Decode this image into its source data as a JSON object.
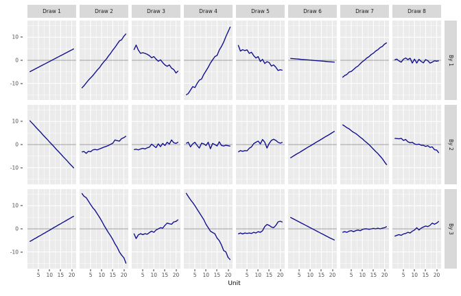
{
  "figure": {
    "x_label": "Unit"
  },
  "facets": {
    "col_labels": [
      "Draw 1",
      "Draw 2",
      "Draw 3",
      "Draw 4",
      "Draw 5",
      "Draw 6",
      "Draw 7",
      "Draw 8"
    ],
    "row_labels": [
      "By 1",
      "By 2",
      "By 3"
    ]
  },
  "axis": {
    "x_ticks": [
      5,
      10,
      15,
      20
    ],
    "y_ticks": [
      10,
      0,
      -10
    ],
    "x_minor": [
      2.5,
      7.5,
      12.5,
      17.5
    ],
    "y_minor": [
      15,
      5,
      -5,
      -15
    ],
    "x_domain": [
      0,
      22
    ],
    "y_domain": [
      -17.2,
      17.2
    ]
  },
  "style": {
    "line_color": "#10108e",
    "panel_bg": "#ebebeb",
    "strip_bg": "#d9d9d9",
    "grid_color": "#ffffff",
    "zero_line_color": "#a0a0a0",
    "tick_label_color": "#4d4d4d",
    "strip_text_color": "#1a1a1a",
    "axis_title_color": "#000000"
  },
  "chart_data": {
    "type": "line",
    "title": "",
    "xlabel": "Unit",
    "ylabel": "",
    "grid": true,
    "legend": "none",
    "facet_cols": [
      "Draw 1",
      "Draw 2",
      "Draw 3",
      "Draw 4",
      "Draw 5",
      "Draw 6",
      "Draw 7",
      "Draw 8"
    ],
    "facet_rows": [
      "By 1",
      "By 2",
      "By 3"
    ],
    "xlim": [
      0,
      22
    ],
    "ylim": [
      -17.2,
      17.2
    ],
    "x": [
      1,
      2,
      3,
      4,
      5,
      6,
      7,
      8,
      9,
      10,
      11,
      12,
      13,
      14,
      15,
      16,
      17,
      18,
      19,
      20,
      21
    ],
    "series": [
      {
        "row": "By 1",
        "col": "Draw 1",
        "values": [
          -5,
          -4.5,
          -4,
          -3.5,
          -3,
          -2.5,
          -2,
          -1.5,
          -1,
          -0.5,
          0,
          0.5,
          1,
          1.5,
          2,
          2.5,
          3,
          3.5,
          4,
          4.5,
          5
        ]
      },
      {
        "row": "By 1",
        "col": "Draw 2",
        "values": [
          -12,
          -11,
          -9.8,
          -8.6,
          -7.6,
          -6.6,
          -5.4,
          -4.2,
          -3.2,
          -1.8,
          -0.6,
          0.4,
          1.8,
          3,
          4.4,
          5.6,
          7,
          8.4,
          8.9,
          10.4,
          11.5
        ]
      },
      {
        "row": "By 1",
        "col": "Draw 3",
        "values": [
          4.5,
          6.6,
          4.4,
          3,
          3.3,
          3,
          2.6,
          2,
          1.1,
          1.6,
          0.5,
          -0.4,
          0.2,
          -1,
          -2,
          -2.6,
          -2,
          -3.4,
          -4,
          -5.5,
          -4.6
        ]
      },
      {
        "row": "By 1",
        "col": "Draw 4",
        "values": [
          -15,
          -14.4,
          -12.9,
          -11.4,
          -11.8,
          -10,
          -8.6,
          -8.1,
          -6.1,
          -4.6,
          -3,
          -1.2,
          0.2,
          1.6,
          2.1,
          4.4,
          6,
          7.9,
          10.3,
          12.4,
          14.5
        ]
      },
      {
        "row": "By 1",
        "col": "Draw 5",
        "values": [
          6.6,
          4,
          4.6,
          4.2,
          4.5,
          3,
          3.5,
          2,
          1,
          1.6,
          -0.5,
          0.4,
          -1.4,
          -0.6,
          -1,
          -2.5,
          -2,
          -3,
          -4.4,
          -4.1,
          -4.3
        ]
      },
      {
        "row": "By 1",
        "col": "Draw 6",
        "values": [
          0.8,
          0.72,
          0.64,
          0.56,
          0.48,
          0.4,
          0.32,
          0.24,
          0.16,
          0.08,
          0,
          -0.08,
          -0.16,
          -0.24,
          -0.32,
          -0.4,
          -0.48,
          -0.56,
          -0.64,
          -0.72,
          -0.8
        ]
      },
      {
        "row": "By 1",
        "col": "Draw 7",
        "values": [
          -7.4,
          -6.6,
          -6.1,
          -5.1,
          -4.8,
          -4,
          -3.1,
          -2.5,
          -1.5,
          -0.6,
          0.1,
          1,
          1.6,
          2.5,
          3.1,
          4,
          4.6,
          5.5,
          6,
          7,
          7.6
        ]
      },
      {
        "row": "By 1",
        "col": "Draw 8",
        "values": [
          0.2,
          0.5,
          -0.3,
          -0.8,
          0.5,
          1,
          0.3,
          0.9,
          -1.2,
          0.5,
          -1.2,
          0.4,
          -0.5,
          -1.1,
          0.3,
          -0.2,
          -1.2,
          -0.8,
          -0.2,
          -0.4,
          -0.2
        ]
      },
      {
        "row": "By 2",
        "col": "Draw 1",
        "values": [
          10.4,
          9.4,
          8.4,
          7.3,
          6.3,
          5.3,
          4.2,
          3.2,
          2.2,
          1.1,
          0.1,
          -0.9,
          -2,
          -3,
          -4,
          -5.1,
          -6.1,
          -7.1,
          -8.2,
          -9.2,
          -10.2
        ]
      },
      {
        "row": "By 2",
        "col": "Draw 2",
        "values": [
          -3.2,
          -3,
          -3.8,
          -2.9,
          -3.1,
          -2.3,
          -2.1,
          -2.3,
          -1.9,
          -1.5,
          -1.1,
          -0.8,
          -0.4,
          0.1,
          0.6,
          2,
          1.7,
          1.5,
          2.6,
          3,
          3.7
        ]
      },
      {
        "row": "By 2",
        "col": "Draw 3",
        "values": [
          -2.2,
          -2,
          -2.3,
          -1.9,
          -1.6,
          -1.9,
          -1.4,
          -1.1,
          0.2,
          -0.6,
          -1.3,
          0.3,
          -0.9,
          0.5,
          -0.4,
          1,
          0.2,
          2,
          0.8,
          0.5,
          1.1
        ]
      },
      {
        "row": "By 2",
        "col": "Draw 4",
        "values": [
          0.5,
          1,
          -1,
          0.3,
          1,
          -0.4,
          -1.5,
          0.6,
          0.3,
          -0.4,
          1,
          -1.8,
          0.5,
          0,
          -0.6,
          1.2,
          -0.4,
          -0.6,
          -0.3,
          -0.5,
          -0.7
        ]
      },
      {
        "row": "By 2",
        "col": "Draw 5",
        "values": [
          -3.2,
          -2.6,
          -2.9,
          -2.6,
          -2.7,
          -1.6,
          -1,
          0.4,
          1,
          1.5,
          0.3,
          2.2,
          1,
          -1.5,
          0.5,
          1.8,
          2.3,
          1.8,
          1,
          0.6,
          1
        ]
      },
      {
        "row": "By 2",
        "col": "Draw 6",
        "values": [
          -5.8,
          -5.2,
          -4.6,
          -4,
          -3.5,
          -2.9,
          -2.3,
          -1.7,
          -1.1,
          -0.6,
          0,
          0.6,
          1.2,
          1.7,
          2.3,
          2.9,
          3.5,
          4,
          4.6,
          5.2,
          5.8
        ]
      },
      {
        "row": "By 2",
        "col": "Draw 7",
        "values": [
          8.6,
          8,
          7.3,
          6.8,
          6,
          5.3,
          4.8,
          4,
          3.2,
          2.5,
          1.6,
          0.8,
          0,
          -1,
          -2,
          -3,
          -3.9,
          -5,
          -6.1,
          -7.5,
          -8.8
        ]
      },
      {
        "row": "By 2",
        "col": "Draw 8",
        "values": [
          2.7,
          2.6,
          2.5,
          2.7,
          1.8,
          2.2,
          1.2,
          0.8,
          1,
          0.3,
          0,
          0.2,
          -0.3,
          -0.3,
          -0.8,
          -0.5,
          -1.2,
          -1,
          -2.2,
          -2.4,
          -3.6
        ]
      },
      {
        "row": "By 3",
        "col": "Draw 1",
        "values": [
          -5.5,
          -5,
          -4.4,
          -3.9,
          -3.3,
          -2.8,
          -2.2,
          -1.7,
          -1.1,
          -0.6,
          0,
          0.6,
          1.1,
          1.7,
          2.2,
          2.8,
          3.3,
          3.9,
          4.4,
          5,
          5.5
        ]
      },
      {
        "row": "By 3",
        "col": "Draw 2",
        "values": [
          15.4,
          14.1,
          13.5,
          12,
          10.5,
          9.1,
          8,
          6.5,
          5,
          3.4,
          1.6,
          0,
          -1.6,
          -3,
          -4.6,
          -6.5,
          -8,
          -10,
          -11.4,
          -12.5,
          -15
        ]
      },
      {
        "row": "By 3",
        "col": "Draw 3",
        "values": [
          -2,
          -4.2,
          -2.6,
          -2.1,
          -2.5,
          -2.1,
          -2.3,
          -1.6,
          -1,
          -1.5,
          -0.5,
          0,
          0.5,
          0.3,
          1.5,
          2.5,
          2.2,
          2,
          3,
          3.2,
          4
        ]
      },
      {
        "row": "By 3",
        "col": "Draw 4",
        "values": [
          15.5,
          14,
          12.6,
          11.4,
          10,
          8.5,
          7,
          5.5,
          4,
          2,
          0.5,
          -1,
          -1.6,
          -2.1,
          -4,
          -5.1,
          -7,
          -9.4,
          -10,
          -12.4,
          -13.4
        ]
      },
      {
        "row": "By 3",
        "col": "Draw 5",
        "values": [
          -2.2,
          -1.8,
          -2.2,
          -1.8,
          -2,
          -1.8,
          -2,
          -1.5,
          -1.8,
          -1.2,
          -1.5,
          -0.8,
          1,
          1.9,
          1.5,
          0.8,
          0.5,
          1.5,
          3,
          3.3,
          2.9
        ]
      },
      {
        "row": "By 3",
        "col": "Draw 6",
        "values": [
          5,
          4.5,
          4,
          3.5,
          3,
          2.5,
          2,
          1.5,
          1,
          0.5,
          0,
          -0.5,
          -1,
          -1.5,
          -2,
          -2.5,
          -3,
          -3.5,
          -4,
          -4.4,
          -4.9
        ]
      },
      {
        "row": "By 3",
        "col": "Draw 7",
        "values": [
          -1.5,
          -1.2,
          -1.5,
          -1,
          -0.8,
          -1.2,
          -0.8,
          -0.5,
          -0.8,
          -0.3,
          0,
          0,
          -0.2,
          0,
          0.2,
          0,
          0.3,
          0,
          0.3,
          0.5,
          1
        ]
      },
      {
        "row": "By 3",
        "col": "Draw 8",
        "values": [
          -3.2,
          -2.8,
          -2.5,
          -2.8,
          -2.2,
          -2,
          -1.5,
          -1.8,
          -1,
          -0.5,
          0.5,
          -0.5,
          0.3,
          0.8,
          1.2,
          1,
          1.5,
          2.5,
          2,
          2.5,
          3.3
        ]
      }
    ]
  }
}
